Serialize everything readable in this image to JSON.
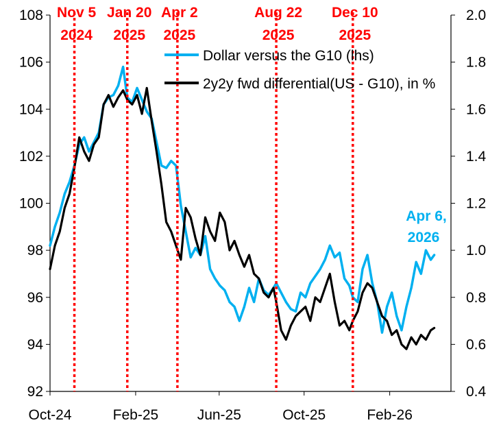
{
  "chart_data": {
    "type": "line",
    "title": "",
    "xlabel": "",
    "ylabel": "",
    "x_tick_labels": [
      "Oct-24",
      "Feb-25",
      "Jun-25",
      "Oct-25",
      "Feb-26"
    ],
    "x_ticks": [
      "2024-10-01",
      "2025-02-01",
      "2025-06-01",
      "2025-10-01",
      "2026-02-01"
    ],
    "xlim": [
      "2024-10-01",
      "2026-04-30"
    ],
    "y_left": {
      "lim": [
        92,
        108
      ],
      "ticks": [
        "92",
        "94",
        "96",
        "98",
        "100",
        "102",
        "104",
        "106",
        "108"
      ]
    },
    "y_right": {
      "lim": [
        0.4,
        2.0
      ],
      "ticks": [
        "0.4",
        "0.6",
        "0.8",
        "1.0",
        "1.2",
        "1.4",
        "1.6",
        "1.8",
        "2.0"
      ]
    },
    "grid": false,
    "legend": "top-center",
    "events": [
      {
        "date": "2024-11-05",
        "label_line1": "Nov 5",
        "label_line2": "2024"
      },
      {
        "date": "2025-01-20",
        "label_line1": "Jan 20",
        "label_line2": "2025"
      },
      {
        "date": "2025-04-02",
        "label_line1": "Apr 2",
        "label_line2": "2025"
      },
      {
        "date": "2025-08-22",
        "label_line1": "Aug 22",
        "label_line2": "2025"
      },
      {
        "date": "2025-12-10",
        "label_line1": "Dec 10",
        "label_line2": "2025"
      }
    ],
    "annotation": {
      "line1": "Apr 6,",
      "line2": "2026",
      "color": "#00b0f0"
    },
    "series": [
      {
        "name": "Dollar versus the G10 (lhs)",
        "axis": "left",
        "color": "#00b0f0",
        "points": [
          [
            "2024-10-01",
            98.2
          ],
          [
            "2024-10-08",
            99.0
          ],
          [
            "2024-10-15",
            99.6
          ],
          [
            "2024-10-22",
            100.4
          ],
          [
            "2024-10-29",
            100.9
          ],
          [
            "2024-11-05",
            101.6
          ],
          [
            "2024-11-12",
            102.5
          ],
          [
            "2024-11-19",
            102.8
          ],
          [
            "2024-11-26",
            102.2
          ],
          [
            "2024-12-03",
            102.6
          ],
          [
            "2024-12-10",
            103.0
          ],
          [
            "2024-12-17",
            104.2
          ],
          [
            "2024-12-24",
            104.5
          ],
          [
            "2024-12-31",
            104.6
          ],
          [
            "2025-01-07",
            105.0
          ],
          [
            "2025-01-14",
            105.8
          ],
          [
            "2025-01-20",
            104.5
          ],
          [
            "2025-01-27",
            104.3
          ],
          [
            "2025-02-03",
            104.9
          ],
          [
            "2025-02-10",
            104.4
          ],
          [
            "2025-02-17",
            103.9
          ],
          [
            "2025-02-24",
            103.6
          ],
          [
            "2025-03-03",
            102.6
          ],
          [
            "2025-03-10",
            101.6
          ],
          [
            "2025-03-17",
            101.5
          ],
          [
            "2025-03-24",
            101.8
          ],
          [
            "2025-03-31",
            101.6
          ],
          [
            "2025-04-07",
            99.9
          ],
          [
            "2025-04-14",
            98.8
          ],
          [
            "2025-04-21",
            97.7
          ],
          [
            "2025-04-28",
            98.1
          ],
          [
            "2025-05-05",
            97.8
          ],
          [
            "2025-05-12",
            98.6
          ],
          [
            "2025-05-19",
            97.2
          ],
          [
            "2025-05-26",
            96.8
          ],
          [
            "2025-06-02",
            96.5
          ],
          [
            "2025-06-09",
            96.3
          ],
          [
            "2025-06-16",
            95.8
          ],
          [
            "2025-06-23",
            95.6
          ],
          [
            "2025-06-30",
            95.0
          ],
          [
            "2025-07-07",
            95.6
          ],
          [
            "2025-07-14",
            96.4
          ],
          [
            "2025-07-21",
            95.8
          ],
          [
            "2025-07-28",
            96.8
          ],
          [
            "2025-08-04",
            96.3
          ],
          [
            "2025-08-11",
            96.1
          ],
          [
            "2025-08-18",
            96.4
          ],
          [
            "2025-08-22",
            96.6
          ],
          [
            "2025-08-29",
            96.2
          ],
          [
            "2025-09-05",
            95.8
          ],
          [
            "2025-09-12",
            95.5
          ],
          [
            "2025-09-19",
            95.4
          ],
          [
            "2025-09-26",
            96.2
          ],
          [
            "2025-10-03",
            96.0
          ],
          [
            "2025-10-10",
            96.6
          ],
          [
            "2025-10-17",
            96.9
          ],
          [
            "2025-10-24",
            97.2
          ],
          [
            "2025-10-31",
            97.6
          ],
          [
            "2025-11-07",
            98.2
          ],
          [
            "2025-11-14",
            97.7
          ],
          [
            "2025-11-21",
            97.9
          ],
          [
            "2025-11-28",
            96.8
          ],
          [
            "2025-12-05",
            96.5
          ],
          [
            "2025-12-10",
            96.0
          ],
          [
            "2025-12-17",
            95.8
          ],
          [
            "2025-12-24",
            97.2
          ],
          [
            "2025-12-31",
            97.8
          ],
          [
            "2026-01-07",
            96.6
          ],
          [
            "2026-01-14",
            95.8
          ],
          [
            "2026-01-21",
            94.5
          ],
          [
            "2026-01-28",
            95.6
          ],
          [
            "2026-02-04",
            96.2
          ],
          [
            "2026-02-11",
            95.2
          ],
          [
            "2026-02-18",
            94.6
          ],
          [
            "2026-02-25",
            95.6
          ],
          [
            "2026-03-04",
            96.4
          ],
          [
            "2026-03-11",
            97.5
          ],
          [
            "2026-03-18",
            97.0
          ],
          [
            "2026-03-25",
            98.0
          ],
          [
            "2026-04-01",
            97.6
          ],
          [
            "2026-04-06",
            97.8
          ]
        ]
      },
      {
        "name": "2y2y fwd differential(US - G10), in %",
        "axis": "right",
        "color": "#000000",
        "points": [
          [
            "2024-10-01",
            0.92
          ],
          [
            "2024-10-08",
            1.02
          ],
          [
            "2024-10-15",
            1.08
          ],
          [
            "2024-10-22",
            1.18
          ],
          [
            "2024-10-29",
            1.24
          ],
          [
            "2024-11-05",
            1.35
          ],
          [
            "2024-11-12",
            1.48
          ],
          [
            "2024-11-19",
            1.42
          ],
          [
            "2024-11-26",
            1.38
          ],
          [
            "2024-12-03",
            1.45
          ],
          [
            "2024-12-10",
            1.48
          ],
          [
            "2024-12-17",
            1.62
          ],
          [
            "2024-12-24",
            1.66
          ],
          [
            "2024-12-31",
            1.61
          ],
          [
            "2025-01-07",
            1.65
          ],
          [
            "2025-01-14",
            1.68
          ],
          [
            "2025-01-20",
            1.64
          ],
          [
            "2025-01-27",
            1.62
          ],
          [
            "2025-02-03",
            1.66
          ],
          [
            "2025-02-10",
            1.58
          ],
          [
            "2025-02-17",
            1.69
          ],
          [
            "2025-02-24",
            1.55
          ],
          [
            "2025-03-03",
            1.42
          ],
          [
            "2025-03-10",
            1.28
          ],
          [
            "2025-03-17",
            1.12
          ],
          [
            "2025-03-24",
            1.08
          ],
          [
            "2025-03-31",
            1.02
          ],
          [
            "2025-04-07",
            0.96
          ],
          [
            "2025-04-14",
            1.18
          ],
          [
            "2025-04-21",
            1.14
          ],
          [
            "2025-04-28",
            1.05
          ],
          [
            "2025-05-05",
            0.98
          ],
          [
            "2025-05-12",
            1.14
          ],
          [
            "2025-05-19",
            1.08
          ],
          [
            "2025-05-26",
            1.04
          ],
          [
            "2025-06-02",
            1.16
          ],
          [
            "2025-06-09",
            1.12
          ],
          [
            "2025-06-16",
            1.0
          ],
          [
            "2025-06-23",
            1.04
          ],
          [
            "2025-06-30",
            0.98
          ],
          [
            "2025-07-07",
            0.93
          ],
          [
            "2025-07-14",
            0.98
          ],
          [
            "2025-07-21",
            0.9
          ],
          [
            "2025-07-28",
            0.88
          ],
          [
            "2025-08-04",
            0.82
          ],
          [
            "2025-08-11",
            0.8
          ],
          [
            "2025-08-18",
            0.84
          ],
          [
            "2025-08-22",
            0.78
          ],
          [
            "2025-08-29",
            0.66
          ],
          [
            "2025-09-05",
            0.62
          ],
          [
            "2025-09-12",
            0.68
          ],
          [
            "2025-09-19",
            0.72
          ],
          [
            "2025-09-26",
            0.74
          ],
          [
            "2025-10-03",
            0.76
          ],
          [
            "2025-10-10",
            0.7
          ],
          [
            "2025-10-17",
            0.8
          ],
          [
            "2025-10-24",
            0.78
          ],
          [
            "2025-10-31",
            0.84
          ],
          [
            "2025-11-07",
            0.9
          ],
          [
            "2025-11-14",
            0.78
          ],
          [
            "2025-11-21",
            0.68
          ],
          [
            "2025-11-28",
            0.7
          ],
          [
            "2025-12-05",
            0.66
          ],
          [
            "2025-12-10",
            0.7
          ],
          [
            "2025-12-17",
            0.74
          ],
          [
            "2025-12-24",
            0.82
          ],
          [
            "2025-12-31",
            0.86
          ],
          [
            "2026-01-07",
            0.84
          ],
          [
            "2026-01-14",
            0.78
          ],
          [
            "2026-01-21",
            0.72
          ],
          [
            "2026-01-28",
            0.7
          ],
          [
            "2026-02-04",
            0.64
          ],
          [
            "2026-02-11",
            0.66
          ],
          [
            "2026-02-18",
            0.6
          ],
          [
            "2026-02-25",
            0.58
          ],
          [
            "2026-03-04",
            0.63
          ],
          [
            "2026-03-11",
            0.6
          ],
          [
            "2026-03-18",
            0.64
          ],
          [
            "2026-03-25",
            0.62
          ],
          [
            "2026-04-01",
            0.66
          ],
          [
            "2026-04-06",
            0.67
          ]
        ]
      }
    ]
  }
}
